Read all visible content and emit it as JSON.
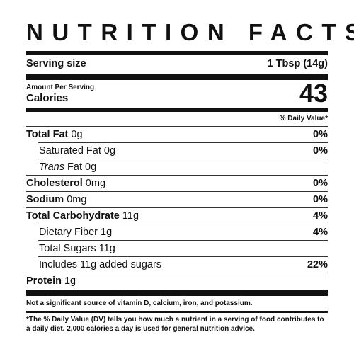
{
  "title": "NUTRITION FACTS",
  "serving": {
    "label": "Serving size",
    "value": "1 Tbsp (14g)"
  },
  "calories": {
    "per_serving": "Amount Per Serving",
    "label": "Calories",
    "value": "43"
  },
  "daily_value_header": "% Daily Value*",
  "nutrients": {
    "total_fat": {
      "name": "Total Fat",
      "amount": "0g",
      "dv": "0%"
    },
    "saturated_fat": {
      "name": "Saturated Fat",
      "amount": "0g",
      "dv": "0%"
    },
    "trans_fat": {
      "name": "Trans",
      "suffix": "Fat",
      "amount": "0g",
      "dv": ""
    },
    "cholesterol": {
      "name": "Cholesterol",
      "amount": "0mg",
      "dv": "0%"
    },
    "sodium": {
      "name": "Sodium",
      "amount": "0mg",
      "dv": "0%"
    },
    "total_carbohydrate": {
      "name": "Total Carbohydrate",
      "amount": "11g",
      "dv": "4%"
    },
    "dietary_fiber": {
      "name": "Dietary Fiber",
      "amount": "1g",
      "dv": "4%"
    },
    "total_sugars": {
      "name": "Total Sugars",
      "amount": "11g",
      "dv": ""
    },
    "added_sugars": {
      "name": "Includes 11g added sugars",
      "dv": "22%"
    },
    "protein": {
      "name": "Protein",
      "amount": "1g",
      "dv": ""
    }
  },
  "footnotes": {
    "not_significant": "Not a significant source of vitamin D, calcium, iron, and potassium.",
    "daily_value_note": "*The % Daily Value (DV) tells you how much a nutrient in a serving of food contributes to a daily diet. 2,000 calories a day is used for general nutrition advice."
  }
}
